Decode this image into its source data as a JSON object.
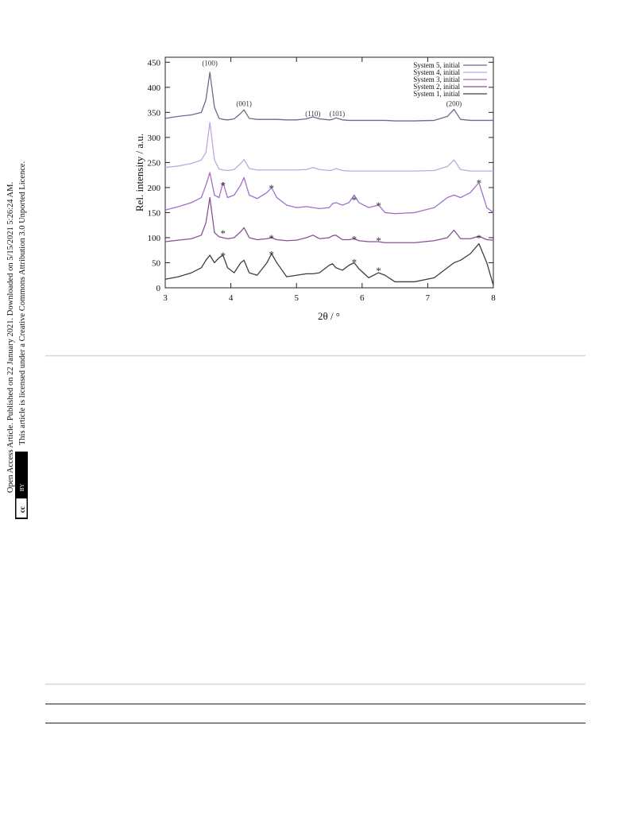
{
  "sidebar": {
    "line1": "Open Access Article. Published on 22 January 2021. Downloaded on 5/15/2021 5:26:24 AM.",
    "line2": "This article is licensed under a Creative Commons Attribution 3.0 Unported Licence.",
    "badge_cc": "cc",
    "badge_by": "BY"
  },
  "chart_data": {
    "type": "line",
    "xlabel": "2θ / °",
    "ylabel": "Rel. intensity / a.u.",
    "xlim": [
      3,
      8
    ],
    "ylim": [
      0,
      460
    ],
    "xticks": [
      3,
      4,
      5,
      6,
      7,
      8
    ],
    "yticks": [
      0,
      50,
      100,
      150,
      200,
      250,
      300,
      350,
      400,
      450
    ],
    "legend": "upper right",
    "x": [
      3.0,
      3.2,
      3.4,
      3.55,
      3.62,
      3.68,
      3.75,
      3.82,
      3.88,
      3.95,
      4.05,
      4.15,
      4.2,
      4.28,
      4.4,
      4.55,
      4.62,
      4.7,
      4.85,
      5.0,
      5.15,
      5.25,
      5.35,
      5.5,
      5.55,
      5.6,
      5.7,
      5.8,
      5.88,
      5.95,
      6.1,
      6.25,
      6.35,
      6.5,
      6.8,
      7.1,
      7.3,
      7.4,
      7.5,
      7.65,
      7.78,
      7.9,
      8.0
    ],
    "series": [
      {
        "name": "System 5, initial",
        "color": "#6e6a8c",
        "values": [
          338,
          342,
          345,
          350,
          375,
          430,
          360,
          338,
          336,
          335,
          337,
          348,
          355,
          338,
          336,
          336,
          336,
          336,
          335,
          335,
          337,
          341,
          337,
          335,
          336,
          339,
          335,
          334,
          334,
          334,
          334,
          334,
          334,
          333,
          333,
          334,
          342,
          356,
          336,
          334,
          334,
          334,
          334
        ]
      },
      {
        "name": "System 4, initial",
        "color": "#bfa8e0",
        "values": [
          240,
          243,
          248,
          255,
          270,
          330,
          255,
          237,
          235,
          234,
          236,
          248,
          256,
          238,
          235,
          235,
          235,
          235,
          235,
          235,
          236,
          240,
          236,
          234,
          235,
          238,
          234,
          233,
          233,
          233,
          233,
          233,
          233,
          233,
          233,
          234,
          242,
          255,
          236,
          233,
          233,
          233,
          233
        ]
      },
      {
        "name": "System 3, initial",
        "color": "#a070c8",
        "values": [
          155,
          162,
          170,
          180,
          205,
          230,
          185,
          180,
          210,
          180,
          185,
          205,
          220,
          185,
          178,
          190,
          200,
          180,
          165,
          160,
          162,
          160,
          158,
          160,
          168,
          170,
          165,
          170,
          185,
          170,
          160,
          165,
          150,
          148,
          150,
          160,
          180,
          185,
          180,
          190,
          210,
          160,
          150
        ]
      },
      {
        "name": "System 2, initial",
        "color": "#8a4f96",
        "values": [
          92,
          95,
          98,
          105,
          130,
          180,
          110,
          102,
          100,
          98,
          100,
          112,
          120,
          100,
          96,
          98,
          100,
          96,
          94,
          95,
          100,
          105,
          98,
          100,
          104,
          105,
          96,
          96,
          98,
          94,
          92,
          92,
          90,
          90,
          90,
          94,
          100,
          115,
          98,
          98,
          103,
          96,
          95
        ]
      },
      {
        "name": "System 1, initial",
        "color": "#3f3f3f",
        "values": [
          17,
          22,
          30,
          40,
          55,
          65,
          50,
          60,
          65,
          40,
          30,
          50,
          55,
          30,
          25,
          50,
          68,
          50,
          22,
          25,
          28,
          28,
          30,
          45,
          48,
          40,
          35,
          45,
          50,
          38,
          20,
          30,
          25,
          12,
          12,
          20,
          40,
          50,
          55,
          68,
          88,
          50,
          5
        ]
      }
    ],
    "annotations": [
      {
        "text": "(100)",
        "x": 3.68,
        "y": 448
      },
      {
        "text": "(001)",
        "x": 4.2,
        "y": 367
      },
      {
        "text": "(110)",
        "x": 5.25,
        "y": 347
      },
      {
        "text": "(101)",
        "x": 5.62,
        "y": 347
      },
      {
        "text": "(200)",
        "x": 7.4,
        "y": 367
      },
      {
        "text": "*",
        "x": 3.88,
        "y": 210
      },
      {
        "text": "*",
        "x": 4.62,
        "y": 205
      },
      {
        "text": "*",
        "x": 5.88,
        "y": 181
      },
      {
        "text": "*",
        "x": 6.25,
        "y": 170
      },
      {
        "text": "*",
        "x": 7.78,
        "y": 215
      },
      {
        "text": "*",
        "x": 3.88,
        "y": 114
      },
      {
        "text": "*",
        "x": 4.62,
        "y": 105
      },
      {
        "text": "*",
        "x": 5.88,
        "y": 102
      },
      {
        "text": "*",
        "x": 6.25,
        "y": 100
      },
      {
        "text": "*",
        "x": 7.78,
        "y": 105
      },
      {
        "text": "*",
        "x": 3.88,
        "y": 70
      },
      {
        "text": "*",
        "x": 4.62,
        "y": 72
      },
      {
        "text": "*",
        "x": 5.88,
        "y": 56
      },
      {
        "text": "*",
        "x": 6.25,
        "y": 40
      }
    ]
  }
}
